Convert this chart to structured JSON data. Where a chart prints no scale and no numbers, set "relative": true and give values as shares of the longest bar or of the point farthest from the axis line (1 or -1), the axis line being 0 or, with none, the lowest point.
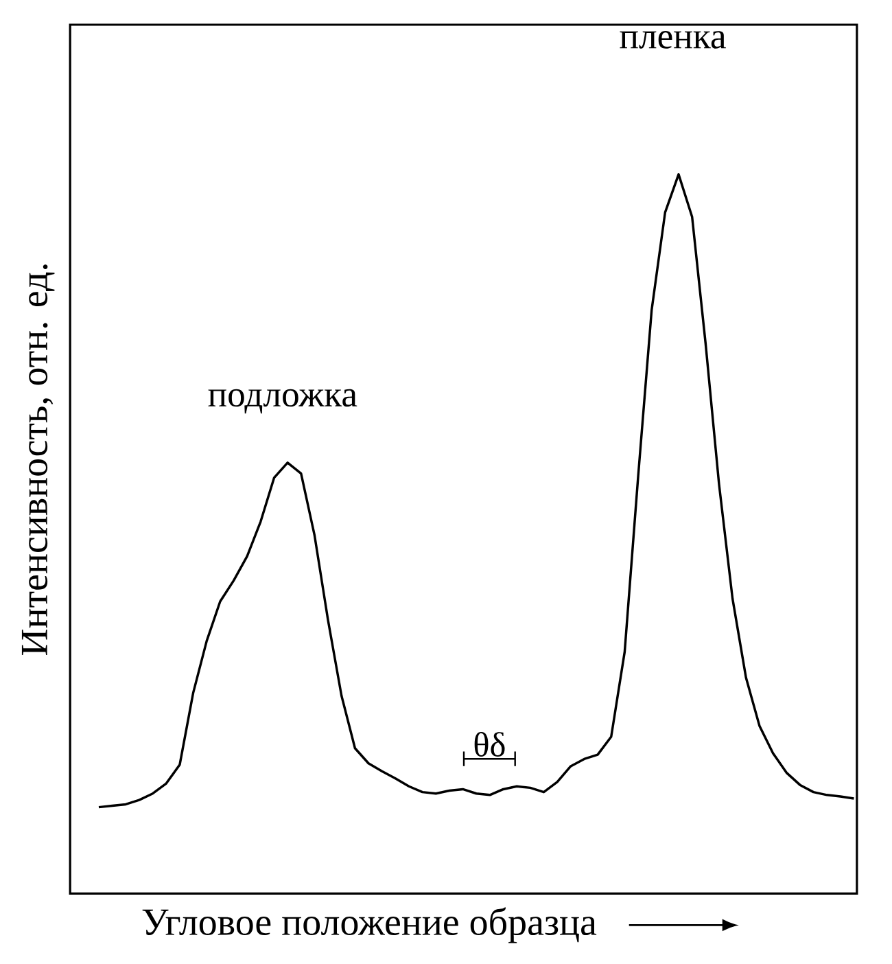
{
  "chart_data": {
    "type": "line",
    "relative": true,
    "xlabel": "Угловое положение образца",
    "ylabel": "Интенсивность, отн. ед.",
    "marker": "none",
    "line_style": "solid",
    "annotations": [
      "подложка",
      "пленка",
      "θδ"
    ],
    "categories": [
      null,
      null,
      null,
      null,
      null,
      null,
      null,
      null,
      null,
      null,
      null,
      null,
      null,
      null,
      null,
      null,
      null,
      null,
      null,
      null,
      null,
      null,
      null,
      null,
      null,
      null,
      null,
      null,
      null,
      null,
      null,
      null,
      null,
      null,
      null,
      null,
      null,
      null,
      null,
      null,
      null,
      null,
      null,
      null,
      null,
      null,
      null,
      null,
      null,
      null,
      null,
      null,
      null,
      null,
      null,
      null,
      null
    ],
    "series": [
      {
        "color": "#000000",
        "values": [
          0.12,
          0.122,
          0.124,
          0.13,
          0.139,
          0.153,
          0.179,
          0.279,
          0.351,
          0.406,
          0.435,
          0.469,
          0.517,
          0.578,
          0.599,
          0.584,
          0.498,
          0.38,
          0.275,
          0.202,
          0.181,
          0.17,
          0.16,
          0.149,
          0.141,
          0.139,
          0.143,
          0.145,
          0.139,
          0.137,
          0.145,
          0.149,
          0.147,
          0.141,
          0.155,
          0.177,
          0.187,
          0.193,
          0.218,
          0.336,
          0.58,
          0.811,
          0.947,
          1.0,
          0.941,
          0.765,
          0.569,
          0.41,
          0.3,
          0.233,
          0.195,
          0.168,
          0.151,
          0.141,
          0.137,
          0.135,
          0.132
        ]
      }
    ]
  }
}
